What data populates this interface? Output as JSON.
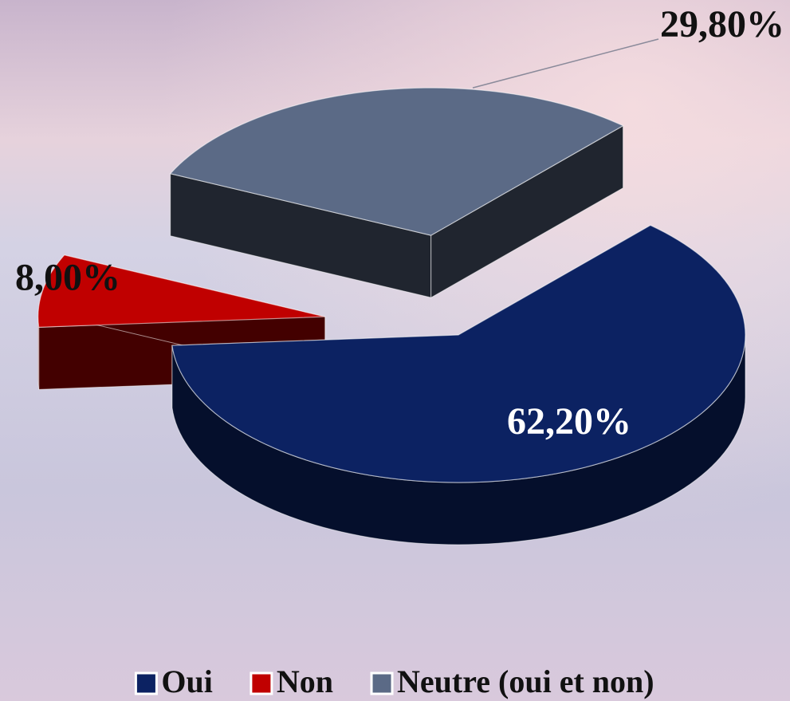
{
  "chart_data": {
    "type": "pie",
    "categories": [
      "Oui",
      "Non",
      "Neutre (oui et non)"
    ],
    "values": [
      62.2,
      8.0,
      29.8
    ],
    "value_labels": [
      "62,20%",
      "8,00%",
      "29,80%"
    ],
    "colors": [
      "#0c2262",
      "#c00000",
      "#5b6a86"
    ],
    "legend": "bottom"
  }
}
